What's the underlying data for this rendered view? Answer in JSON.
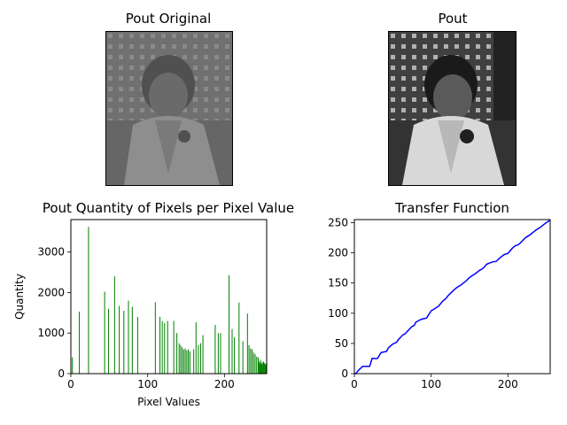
{
  "panels": {
    "original": {
      "title": "Pout Original",
      "image_description_icon": "grayscale-child-photo-low-contrast"
    },
    "equalized": {
      "title": "Pout",
      "image_description_icon": "grayscale-child-photo-high-contrast"
    }
  },
  "chart_data": [
    {
      "type": "bar",
      "title": "Pout Quantity of Pixels per Pixel Value",
      "xlabel": "Pixel Values",
      "ylabel": "Quantity",
      "xlim": [
        0,
        255
      ],
      "ylim": [
        0,
        3800
      ],
      "xticks": [
        0,
        100,
        200
      ],
      "yticks": [
        0,
        1000,
        2000,
        3000
      ],
      "bar_color": "#008000",
      "x": [
        2,
        11,
        23,
        44,
        49,
        57,
        63,
        69,
        75,
        80,
        87,
        110,
        116,
        119,
        122,
        126,
        134,
        138,
        141,
        143,
        145,
        147,
        149,
        151,
        153,
        155,
        160,
        163,
        166,
        169,
        172,
        188,
        192,
        195,
        206,
        210,
        213,
        219,
        224,
        230,
        232,
        234,
        236,
        238,
        240,
        242,
        244,
        245,
        246,
        247,
        248,
        249,
        250,
        251,
        252,
        253,
        254
      ],
      "values": [
        400,
        1530,
        3620,
        2020,
        1600,
        2400,
        1670,
        1550,
        1800,
        1650,
        1400,
        1760,
        1400,
        1300,
        1250,
        1300,
        1300,
        1000,
        750,
        700,
        650,
        600,
        620,
        570,
        600,
        550,
        600,
        1270,
        700,
        750,
        950,
        1200,
        1000,
        1000,
        2430,
        1100,
        900,
        1750,
        800,
        1480,
        700,
        620,
        600,
        520,
        480,
        420,
        400,
        300,
        250,
        340,
        280,
        230,
        270,
        300,
        260,
        220,
        250
      ]
    },
    {
      "type": "line",
      "title": "Transfer Function",
      "xlabel": "",
      "ylabel": "",
      "xlim": [
        0,
        255
      ],
      "ylim": [
        0,
        255
      ],
      "xticks": [
        0,
        100,
        200
      ],
      "yticks": [
        0,
        50,
        100,
        150,
        200,
        250
      ],
      "line_color": "#0000ff",
      "x": [
        0,
        2,
        5,
        9,
        11,
        20,
        23,
        30,
        35,
        42,
        44,
        48,
        50,
        55,
        57,
        60,
        63,
        66,
        69,
        72,
        75,
        78,
        80,
        84,
        87,
        94,
        100,
        104,
        110,
        113,
        116,
        119,
        122,
        126,
        130,
        134,
        138,
        141,
        145,
        149,
        153,
        157,
        160,
        163,
        166,
        169,
        172,
        176,
        180,
        185,
        188,
        192,
        195,
        200,
        206,
        210,
        213,
        216,
        219,
        222,
        224,
        228,
        230,
        234,
        238,
        242,
        246,
        250,
        255
      ],
      "y": [
        0,
        0,
        5,
        10,
        12,
        12,
        25,
        25,
        35,
        37,
        42,
        47,
        49,
        52,
        56,
        60,
        64,
        66,
        70,
        74,
        78,
        80,
        85,
        88,
        90,
        92,
        104,
        107,
        112,
        117,
        121,
        124,
        129,
        134,
        139,
        143,
        146,
        149,
        153,
        158,
        162,
        165,
        168,
        171,
        173,
        176,
        181,
        183,
        185,
        186,
        190,
        194,
        197,
        199,
        208,
        212,
        213,
        216,
        220,
        224,
        226,
        229,
        231,
        235,
        239,
        242,
        246,
        250,
        254
      ]
    }
  ]
}
